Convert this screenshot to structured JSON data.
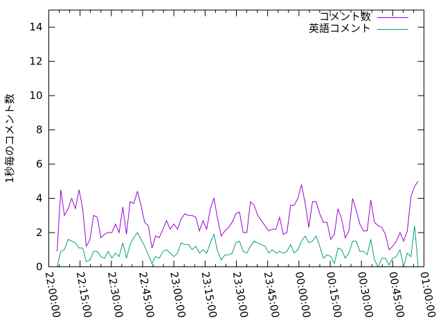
{
  "chart_data": {
    "type": "line",
    "title": "",
    "xlabel": "",
    "ylabel": "1秒毎のコメント数",
    "ylim": [
      0,
      15
    ],
    "xlim": [
      "22:00:00",
      "01:00:00"
    ],
    "yticks": [
      "0",
      "2",
      "4",
      "6",
      "8",
      "10",
      "12",
      "14"
    ],
    "xticks": [
      "22:00:00",
      "22:15:00",
      "22:30:00",
      "22:45:00",
      "23:00:00",
      "23:15:00",
      "23:30:00",
      "23:45:00",
      "00:00:00",
      "00:15:00",
      "00:30:00",
      "00:45:00",
      "01:00:00"
    ],
    "grid": false,
    "legend_position": "top-right",
    "x": [
      "22:04:00",
      "22:05:45",
      "22:07:30",
      "22:09:15",
      "22:11:00",
      "22:12:45",
      "22:14:30",
      "22:16:15",
      "22:18:00",
      "22:19:45",
      "22:21:30",
      "22:23:15",
      "22:25:00",
      "22:26:45",
      "22:28:30",
      "22:30:15",
      "22:32:00",
      "22:33:45",
      "22:35:30",
      "22:37:15",
      "22:39:00",
      "22:40:45",
      "22:42:30",
      "22:44:15",
      "22:46:00",
      "22:47:45",
      "22:49:30",
      "22:51:15",
      "22:53:00",
      "22:54:45",
      "22:56:30",
      "22:58:15",
      "23:00:00",
      "23:01:45",
      "23:03:30",
      "23:05:15",
      "23:07:00",
      "23:08:45",
      "23:10:30",
      "23:12:15",
      "23:14:00",
      "23:15:45",
      "23:17:30",
      "23:19:15",
      "23:21:00",
      "23:22:45",
      "23:24:30",
      "23:26:15",
      "23:28:00",
      "23:29:45",
      "23:31:30",
      "23:33:15",
      "23:35:00",
      "23:36:45",
      "23:38:30",
      "23:40:15",
      "23:42:00",
      "23:43:45",
      "23:45:30",
      "23:47:15",
      "23:49:00",
      "23:50:45",
      "23:52:30",
      "23:54:15",
      "23:56:00",
      "23:57:45",
      "23:59:30",
      "00:01:15",
      "00:03:00",
      "00:04:45",
      "00:06:30",
      "00:08:15",
      "00:10:00",
      "00:11:45",
      "00:13:30",
      "00:15:15",
      "00:17:00",
      "00:18:45",
      "00:20:30",
      "00:22:15",
      "00:24:00",
      "00:25:45",
      "00:27:30",
      "00:29:15",
      "00:31:00",
      "00:32:45",
      "00:34:30",
      "00:36:15",
      "00:38:00",
      "00:39:45",
      "00:41:30",
      "00:43:15",
      "00:45:00",
      "00:46:45",
      "00:48:30",
      "00:50:15",
      "00:52:00",
      "00:53:45",
      "00:55:30",
      "00:57:15"
    ],
    "series": [
      {
        "name": "コメント数",
        "color": "#9400d3",
        "values": [
          0.9,
          4.5,
          3.0,
          3.4,
          4.0,
          3.4,
          4.5,
          3.4,
          1.2,
          1.6,
          3.0,
          2.9,
          1.7,
          1.9,
          2.0,
          2.0,
          2.5,
          2.0,
          3.5,
          1.9,
          3.8,
          3.7,
          4.4,
          3.6,
          2.6,
          2.4,
          1.1,
          1.8,
          1.7,
          2.2,
          2.7,
          2.2,
          2.5,
          2.2,
          2.8,
          3.1,
          3.0,
          3.0,
          2.9,
          2.1,
          2.7,
          2.2,
          3.4,
          4.0,
          2.8,
          1.8,
          2.1,
          2.3,
          2.6,
          3.1,
          3.2,
          2.0,
          2.0,
          3.8,
          3.6,
          3.0,
          2.7,
          2.4,
          2.1,
          2.2,
          2.2,
          2.9,
          1.9,
          2.0,
          3.6,
          3.6,
          4.0,
          4.8,
          3.7,
          2.3,
          3.8,
          3.8,
          3.1,
          2.6,
          2.6,
          1.6,
          1.9,
          3.4,
          2.8,
          1.7,
          2.1,
          4.0,
          3.3,
          2.5,
          2.1,
          2.1,
          3.9,
          2.6,
          2.4,
          2.3,
          1.9,
          1.0,
          1.2,
          1.5,
          2.0,
          1.5,
          2.1,
          4.1,
          4.7,
          5.0
        ]
      },
      {
        "name": "英語コメント",
        "color": "#009e73",
        "values": [
          0,
          0.9,
          1.0,
          1.6,
          1.5,
          1.4,
          1.1,
          1.1,
          0.3,
          0.4,
          0.9,
          0.9,
          0.6,
          0.5,
          0.9,
          0.5,
          0.8,
          0.6,
          1.4,
          0.5,
          1.3,
          1.7,
          2.0,
          1.6,
          1.2,
          0.7,
          0.2,
          0.6,
          0.5,
          0.9,
          1.0,
          0.8,
          0.6,
          0.8,
          1.4,
          1.3,
          1.3,
          1.0,
          1.2,
          0.8,
          1.0,
          0.8,
          1.4,
          1.9,
          0.9,
          0.4,
          0.7,
          0.7,
          0.8,
          1.4,
          1.5,
          0.9,
          0.8,
          1.2,
          1.5,
          1.4,
          1.3,
          1.2,
          0.8,
          1.0,
          0.8,
          0.9,
          0.8,
          0.9,
          1.3,
          0.8,
          1.0,
          1.5,
          1.8,
          1.4,
          1.5,
          1.8,
          1.2,
          0.5,
          0.7,
          0.6,
          0.2,
          1.1,
          1.0,
          0.5,
          0.8,
          1.5,
          1.5,
          0.9,
          0.9,
          0.7,
          1.6,
          0.4,
          0.0,
          0.5,
          0.5,
          0.1,
          0.5,
          0.6,
          1.0,
          0,
          0.8,
          0.6,
          2.4,
          0
        ]
      }
    ]
  }
}
